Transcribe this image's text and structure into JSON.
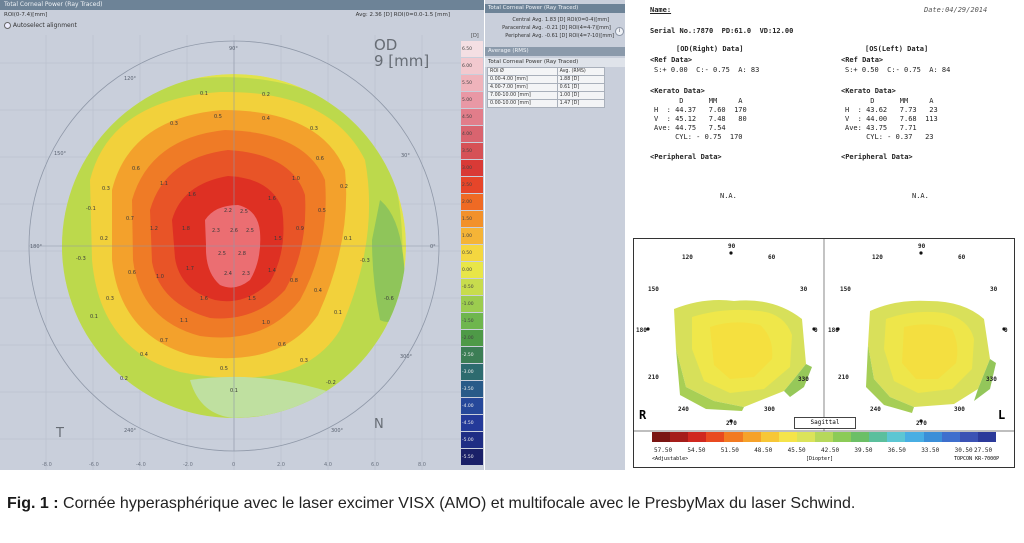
{
  "left_screen": {
    "title": "Total Corneal Power (Ray Traced)",
    "roi": "ROI(0-7.4)[mm]",
    "avg": "Avg: 2.36 [D] ROI(0=0.0-1.5 [mm]",
    "autoselect": "Autoselect alignment",
    "eye": "OD",
    "zone": "9 [mm]",
    "unit": "[D]",
    "bottom_labels": {
      "temporal": "T",
      "nasal": "N"
    },
    "scale_ticks": [
      "6.50",
      "6.00",
      "5.50",
      "5.00",
      "4.50",
      "4.00",
      "3.50",
      "3.00",
      "2.50",
      "2.00",
      "1.50",
      "1.00",
      "0.50",
      "0.00",
      "-0.50",
      "-1.00",
      "-1.50",
      "-2.00",
      "-2.50",
      "-3.00",
      "-3.50",
      "-4.00",
      "-4.50",
      "-5.00",
      "-5.50"
    ],
    "scale_colors": [
      "#f4dfe3",
      "#f2c9cf",
      "#efb3bb",
      "#e998a5",
      "#e27d8a",
      "#d9646f",
      "#d65156",
      "#d93a36",
      "#e6452a",
      "#ef6a24",
      "#f2912a",
      "#f5b437",
      "#f4d740",
      "#e8e648",
      "#c8dc4d",
      "#9ccc4f",
      "#6fb64e",
      "#4e9a47",
      "#3c7e55",
      "#2d6b6f",
      "#285a88",
      "#26489a",
      "#243a99",
      "#1f2d84",
      "#1a2068"
    ]
  },
  "right_panel": {
    "header1": "Total Corneal Power (Ray Traced)",
    "rows": [
      {
        "label": "Central Avg.",
        "value": "1.83 [D] ROI(0=0-4)[mm]"
      },
      {
        "label": "Paracentral Avg.",
        "value": "-0.21 [D] ROI(4=4-7)[mm]"
      },
      {
        "label": "Peripheral Avg.",
        "value": "-0.61 [D] ROI(4=7-10)[mm]"
      }
    ],
    "header2": "Average (RMS)",
    "header3": "Total Corneal Power (Ray Traced)",
    "table_head": [
      "ROI Ø",
      "Avg. (RMS)"
    ],
    "table_rows": [
      [
        "0.00-4.00 [mm]",
        "1.88 [D]"
      ],
      [
        "4.00-7.00 [mm]",
        "0.61 [D]"
      ],
      [
        "7.00-10.00 [mm]",
        "1.00 [D]"
      ],
      [
        "0.00-10.00 [mm]",
        "1.47 [D]"
      ]
    ]
  },
  "report": {
    "name_label": "Name:",
    "date": "Date:04/29/2014",
    "serial": "Serial No.:7870  PD:61.0  VD:12.00",
    "od_header": "[OD(Right) Data]",
    "os_header": "[OS(Left) Data]",
    "ref_label": "<Ref Data>",
    "od_ref": "S:+ 0.00  C:- 0.75  A: 83",
    "os_ref": "S:+ 0.50  C:- 0.75  A: 84",
    "kerato_label": "<Kerato Data>",
    "kerato_head": "      D      MM     A",
    "od_kerato": [
      "H  : 44.37   7.60  170",
      "V  : 45.12   7.48   80",
      "Ave: 44.75   7.54",
      "     CYL: - 0.75  170"
    ],
    "os_kerato": [
      "H  : 43.62   7.73   23",
      "V  : 44.00   7.68  113",
      "Ave: 43.75   7.71",
      "     CYL: - 0.37   23"
    ],
    "peripheral_label": "<Peripheral Data>",
    "na": "N.A.",
    "map_left_eye": "R",
    "map_right_eye": "L",
    "map_mode": "Sagittal",
    "angle_labels": [
      "90",
      "60",
      "30",
      "0",
      "330",
      "300",
      "270",
      "240",
      "210",
      "180",
      "150",
      "120"
    ],
    "legend_values": [
      "57.50",
      "54.50",
      "51.50",
      "48.50",
      "45.50",
      "42.50",
      "39.50",
      "36.50",
      "33.50",
      "30.50",
      "27.50"
    ],
    "legend_colors": [
      "#7a1512",
      "#a51d1a",
      "#d0281f",
      "#e94a20",
      "#f27a22",
      "#f6a22a",
      "#f7c737",
      "#f5e44a",
      "#dbe35a",
      "#b6d85c",
      "#8ccb57",
      "#6cbf66",
      "#5bbf9d",
      "#5cc6d3",
      "#48aee3",
      "#3b8fd8",
      "#3e6fcd",
      "#3b52b4",
      "#2c3a9a"
    ],
    "adjustable": "<Adjustable>",
    "diopter": "[Diopter]",
    "brand": "TOPCON KR-7000P"
  },
  "caption": {
    "fig_label": "Fig. 1 :",
    "text": " Cornée hyperasphérique avec le laser excimer VISX (AMO) et multifocale avec le PresbyMax du laser Schwind."
  }
}
